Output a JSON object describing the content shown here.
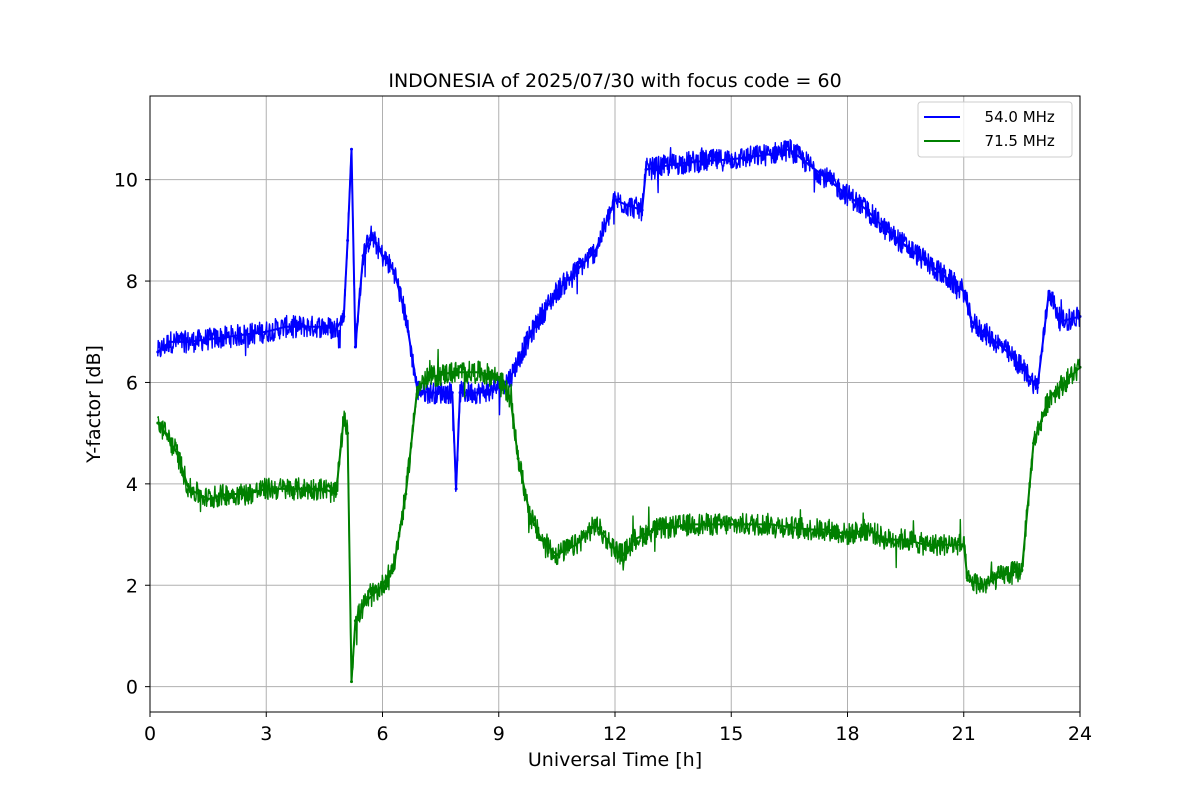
{
  "chart_data": {
    "type": "line",
    "title": "INDONESIA of 2025/07/30 with focus code = 60",
    "xlabel": "Universal Time [h]",
    "ylabel": "Y-factor [dB]",
    "xlim": [
      0,
      24
    ],
    "ylim": [
      -0.5,
      11.65
    ],
    "xticks": [
      0,
      3,
      6,
      9,
      12,
      15,
      18,
      21,
      24
    ],
    "yticks": [
      0,
      2,
      4,
      6,
      8,
      10
    ],
    "grid": true,
    "legend_position": "top-right",
    "series": [
      {
        "name": "54.0 MHz",
        "label": "  54.0 MHz",
        "color": "#0000ff",
        "x": [
          0.2,
          0.5,
          1.0,
          1.5,
          2.0,
          2.5,
          3.0,
          3.5,
          4.0,
          4.5,
          4.8,
          5.0,
          5.1,
          5.2,
          5.3,
          5.5,
          5.7,
          6.0,
          6.3,
          6.6,
          6.9,
          7.2,
          7.6,
          7.8,
          7.9,
          8.0,
          8.5,
          9.0,
          9.3,
          9.6,
          10.0,
          10.5,
          11.0,
          11.5,
          12.0,
          12.3,
          12.7,
          12.8,
          13.5,
          14.0,
          15.0,
          16.0,
          16.5,
          17.0,
          17.5,
          18.0,
          18.5,
          19.0,
          19.5,
          20.0,
          20.5,
          21.0,
          21.2,
          21.5,
          22.0,
          22.5,
          22.9,
          23.2,
          23.5,
          24.0
        ],
        "values": [
          6.6,
          6.8,
          6.8,
          6.85,
          6.9,
          6.95,
          7.0,
          7.1,
          7.1,
          7.1,
          7.05,
          7.3,
          8.8,
          10.6,
          6.7,
          8.5,
          8.9,
          8.5,
          8.2,
          7.3,
          5.85,
          5.8,
          5.8,
          5.8,
          3.9,
          5.8,
          5.8,
          5.9,
          6.1,
          6.6,
          7.2,
          7.8,
          8.2,
          8.6,
          9.6,
          9.5,
          9.4,
          10.2,
          10.3,
          10.35,
          10.4,
          10.5,
          10.6,
          10.3,
          10.0,
          9.7,
          9.4,
          9.0,
          8.7,
          8.4,
          8.1,
          7.8,
          7.2,
          7.0,
          6.7,
          6.3,
          5.9,
          7.8,
          7.2,
          7.3
        ]
      },
      {
        "name": "71.5 MHz",
        "label": "  71.5 MHz",
        "color": "#008000",
        "x": [
          0.2,
          0.4,
          0.7,
          1.0,
          1.5,
          2.0,
          2.5,
          3.0,
          3.5,
          4.0,
          4.5,
          4.8,
          5.0,
          5.1,
          5.2,
          5.3,
          5.6,
          6.0,
          6.3,
          6.6,
          6.9,
          7.2,
          7.8,
          8.5,
          9.0,
          9.3,
          9.5,
          9.8,
          10.1,
          10.5,
          11.0,
          11.5,
          12.0,
          12.2,
          12.5,
          13.0,
          14.0,
          15.0,
          16.0,
          17.0,
          17.5,
          18.0,
          18.5,
          19.0,
          19.5,
          20.0,
          20.5,
          21.0,
          21.1,
          21.5,
          22.0,
          22.5,
          22.8,
          23.2,
          24.0
        ],
        "values": [
          5.2,
          5.0,
          4.6,
          3.9,
          3.7,
          3.8,
          3.8,
          3.9,
          3.9,
          3.9,
          3.9,
          3.8,
          5.3,
          5.0,
          0.1,
          1.3,
          1.7,
          2.0,
          2.4,
          3.8,
          5.9,
          6.1,
          6.2,
          6.2,
          6.1,
          5.7,
          4.5,
          3.4,
          2.9,
          2.6,
          2.8,
          3.2,
          2.7,
          2.6,
          2.9,
          3.1,
          3.2,
          3.2,
          3.2,
          3.1,
          3.1,
          3.0,
          3.1,
          2.9,
          2.9,
          2.8,
          2.8,
          2.8,
          2.1,
          2.0,
          2.2,
          2.3,
          4.8,
          5.7,
          6.3
        ]
      }
    ]
  }
}
